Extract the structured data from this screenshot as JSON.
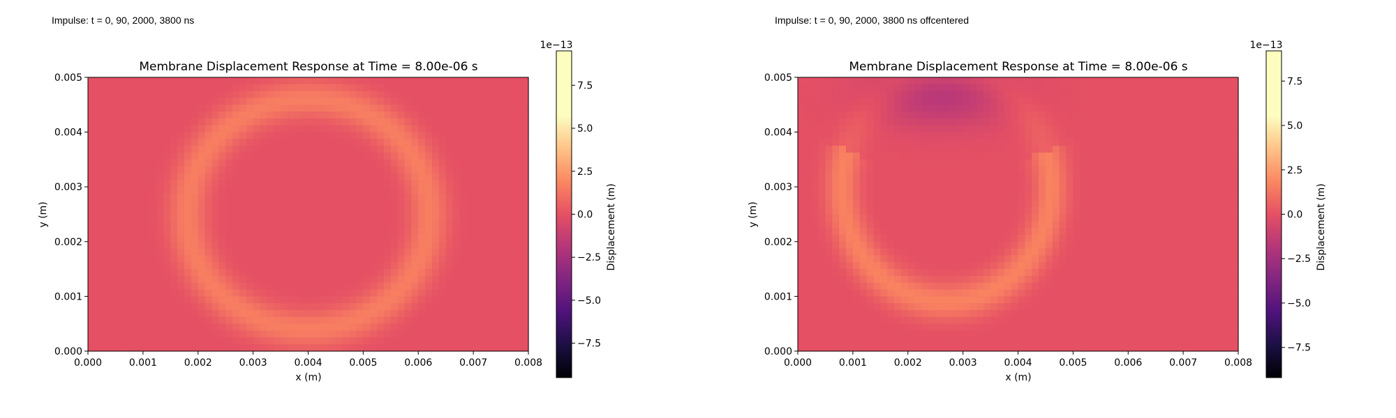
{
  "captions": {
    "left": "Impulse: t = 0, 90, 2000, 3800 ns",
    "right": "Impulse: t = 0, 90, 2000, 3800 ns offcentered"
  },
  "chart_data": [
    {
      "type": "heatmap",
      "title": "Membrane Displacement Response at Time = 8.00e-06 s",
      "xlabel": "x (m)",
      "ylabel": "y (m)",
      "xlim": [
        0,
        0.008
      ],
      "ylim": [
        0,
        0.005
      ],
      "xticks": [
        "0.000",
        "0.001",
        "0.002",
        "0.003",
        "0.004",
        "0.005",
        "0.006",
        "0.007",
        "0.008"
      ],
      "yticks": [
        "0.000",
        "0.001",
        "0.002",
        "0.003",
        "0.004",
        "0.005"
      ],
      "colormap": "magma",
      "colorbar": {
        "label": "Displacement (m)",
        "scale_label": "1e−13",
        "range": [
          -9.5,
          9.5
        ],
        "ticks": [
          "−7.5",
          "−5.0",
          "−2.5",
          "0.0",
          "2.5",
          "5.0",
          "7.5"
        ]
      },
      "field": {
        "background": 0.0,
        "features": [
          {
            "kind": "ring",
            "center_x": 0.004,
            "center_y": 0.0025,
            "radius_x": 0.0022,
            "radius_y": 0.0021,
            "amplitude": 1.6
          }
        ]
      }
    },
    {
      "type": "heatmap",
      "title": "Membrane Displacement Response at Time = 8.00e-06 s",
      "xlabel": "x (m)",
      "ylabel": "y (m)",
      "xlim": [
        0,
        0.008
      ],
      "ylim": [
        0,
        0.005
      ],
      "xticks": [
        "0.000",
        "0.001",
        "0.002",
        "0.003",
        "0.004",
        "0.005",
        "0.006",
        "0.007",
        "0.008"
      ],
      "yticks": [
        "0.000",
        "0.001",
        "0.002",
        "0.003",
        "0.004",
        "0.005"
      ],
      "colormap": "magma",
      "colorbar": {
        "label": "Displacement (m)",
        "scale_label": "1e−13",
        "range": [
          -9.2,
          9.2
        ],
        "ticks": [
          "−7.5",
          "−5.0",
          "−2.5",
          "0.0",
          "2.5",
          "5.0",
          "7.5"
        ]
      },
      "field": {
        "background": 0.0,
        "features": [
          {
            "kind": "arc",
            "center_x": 0.0027,
            "center_y": 0.003,
            "radius_x": 0.0019,
            "radius_y": 0.0021,
            "amplitude": 1.7
          },
          {
            "kind": "trough",
            "center_x": 0.0026,
            "center_y": 0.0047,
            "radius_x": 0.0013,
            "radius_y": 0.0006,
            "amplitude": -1.8
          }
        ]
      }
    }
  ]
}
